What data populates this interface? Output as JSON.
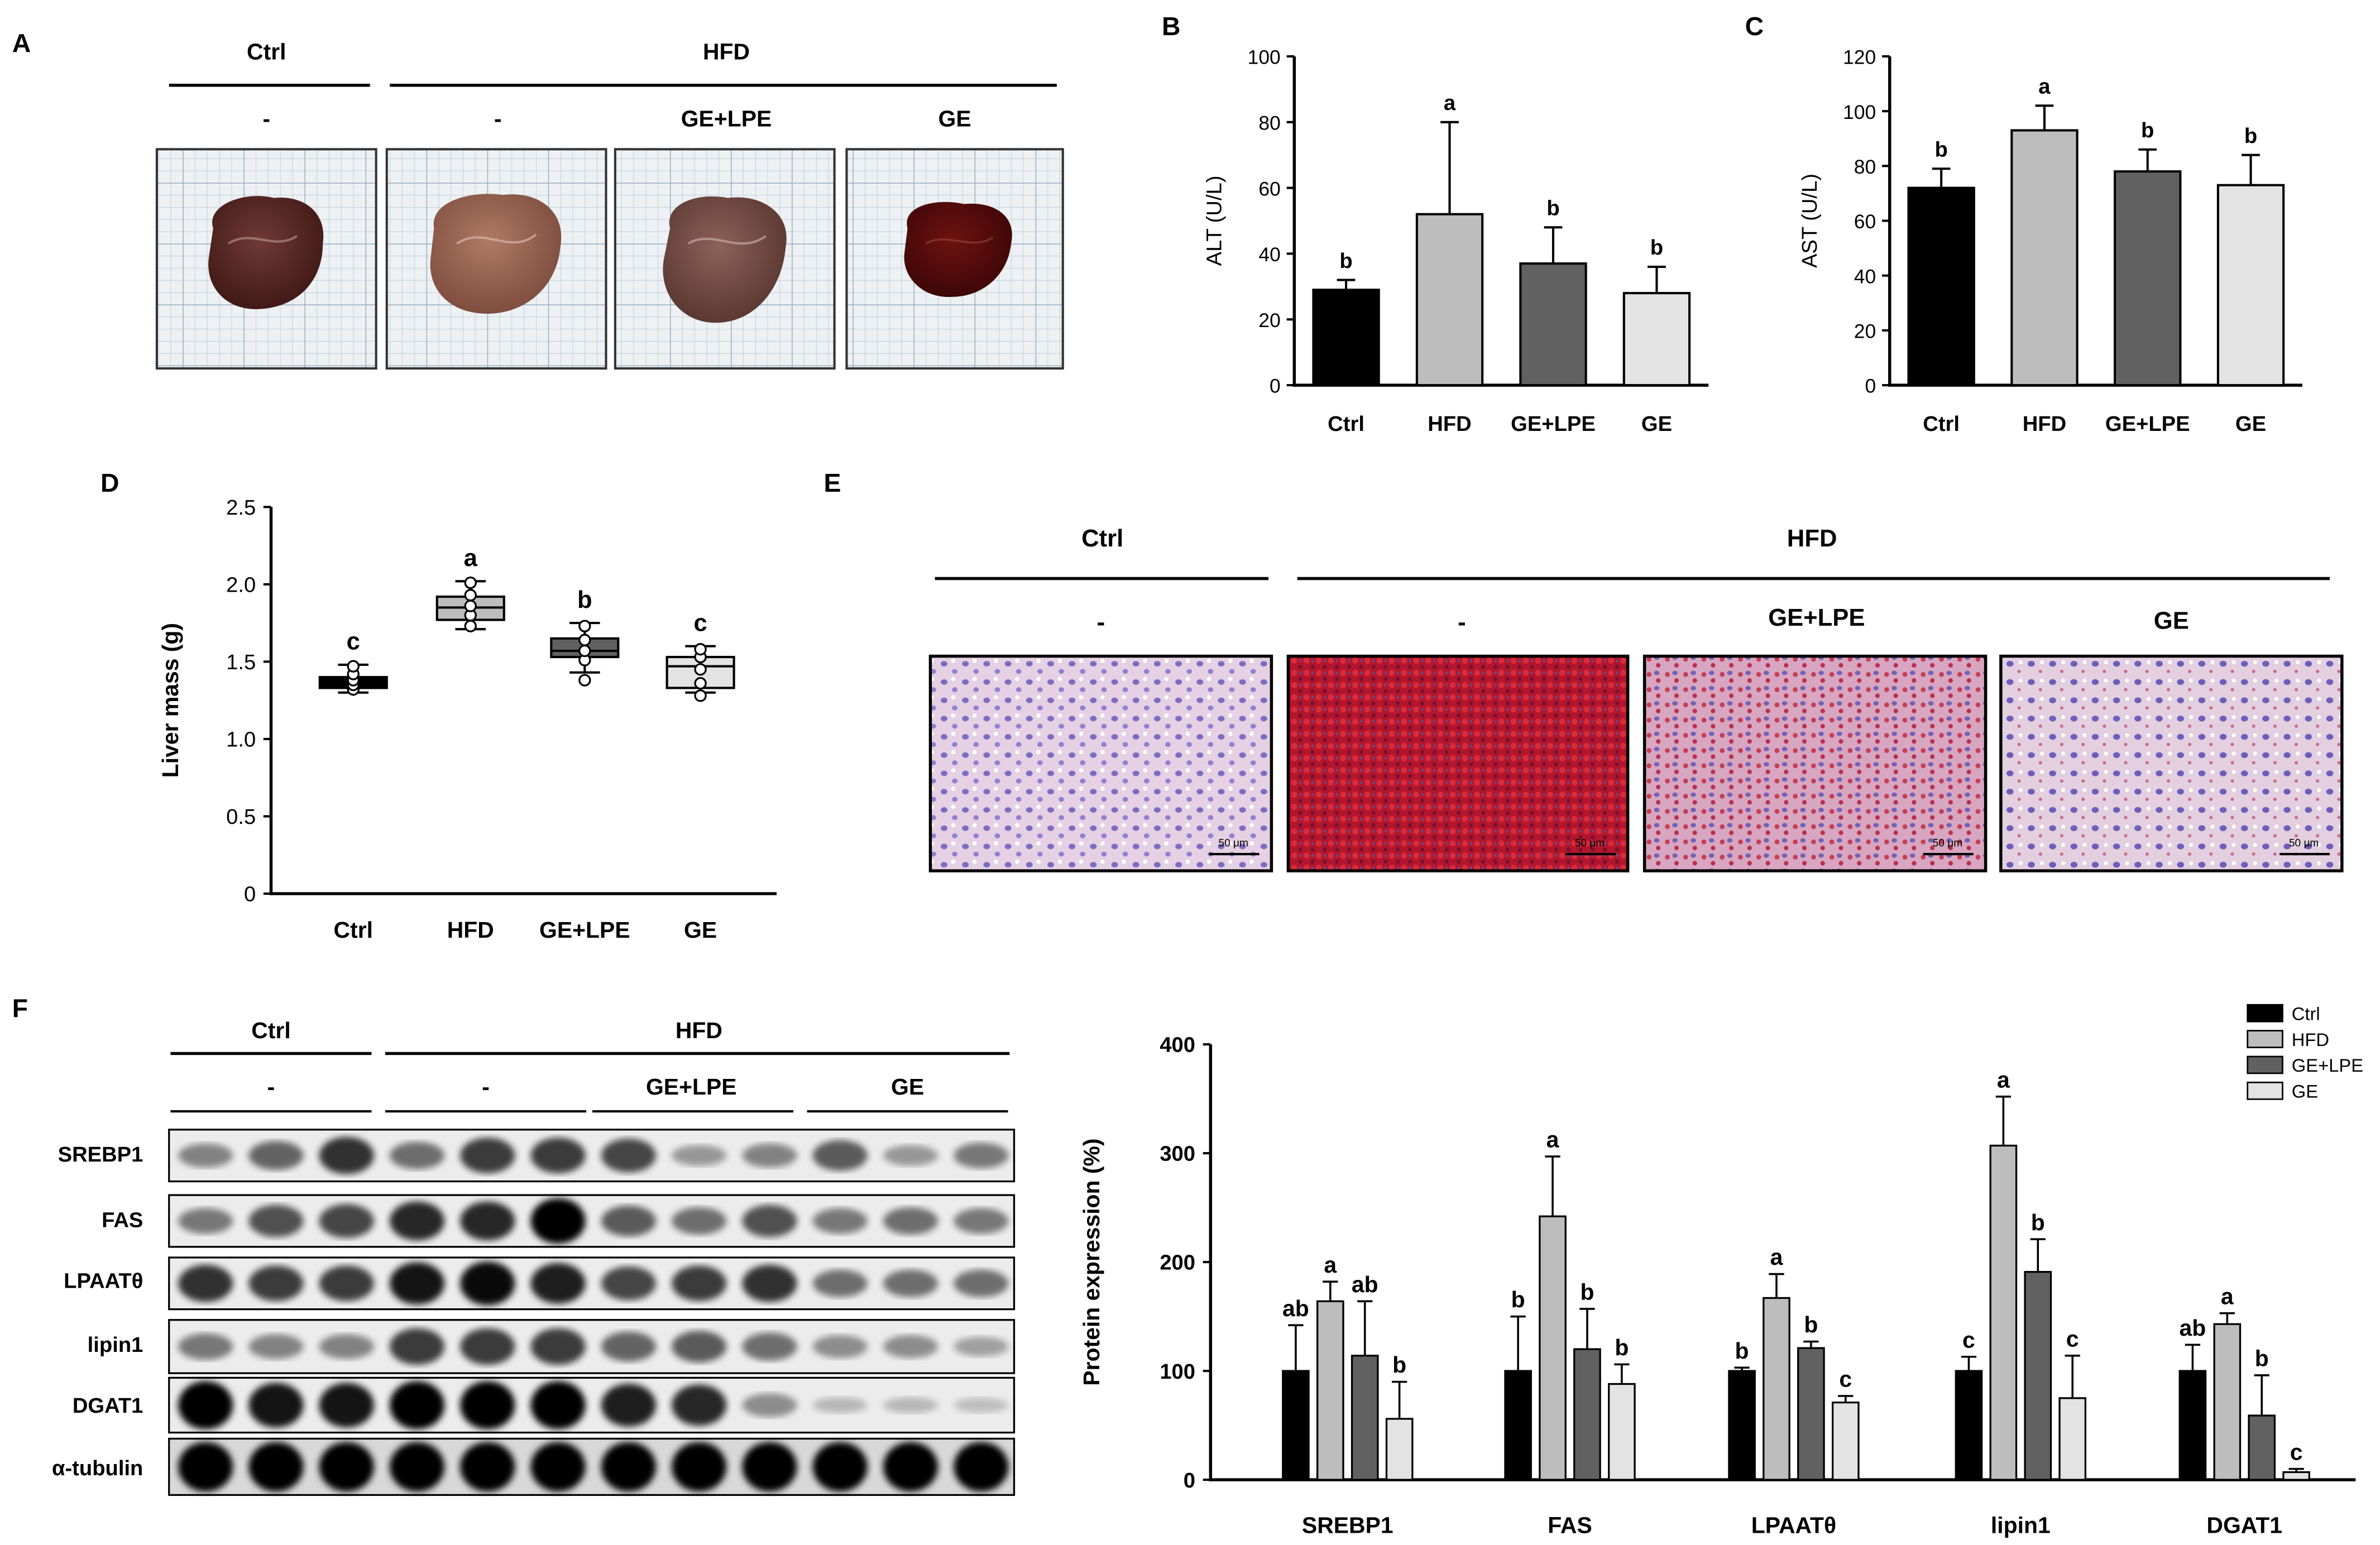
{
  "panels": {
    "A": {
      "label": "A",
      "groups": [
        "Ctrl",
        "HFD"
      ],
      "subgroups": [
        "-",
        "-",
        "GE+LPE",
        "GE"
      ]
    },
    "B": {
      "label": "B"
    },
    "C": {
      "label": "C"
    },
    "D": {
      "label": "D"
    },
    "E": {
      "label": "E",
      "groups": [
        "Ctrl",
        "HFD"
      ],
      "subgroups": [
        "-",
        "-",
        "GE+LPE",
        "GE"
      ],
      "scale_bar": "50 μm"
    },
    "F": {
      "label": "F",
      "groups": [
        "Ctrl",
        "HFD"
      ],
      "subgroups": [
        "-",
        "-",
        "GE+LPE",
        "GE"
      ],
      "proteins": [
        "SREBP1",
        "FAS",
        "LPAATθ",
        "lipin1",
        "DGAT1",
        "α-tubulin"
      ]
    }
  },
  "colors": {
    "ctrl": "#000000",
    "hfd": "#bdbdbd",
    "gelpe": "#616161",
    "ge": "#e3e3e3"
  },
  "chart_data": [
    {
      "id": "B",
      "type": "bar",
      "categories": [
        "Ctrl",
        "HFD",
        "GE+LPE",
        "GE"
      ],
      "values": [
        29,
        52,
        37,
        28
      ],
      "errors": [
        3,
        28,
        11,
        8
      ],
      "letters": [
        "b",
        "a",
        "b",
        "b"
      ],
      "title": "",
      "xlabel": "",
      "ylabel": "ALT (U/L)",
      "ylim": [
        0,
        100
      ],
      "yticks": [
        0,
        20,
        40,
        60,
        80,
        100
      ]
    },
    {
      "id": "C",
      "type": "bar",
      "categories": [
        "Ctrl",
        "HFD",
        "GE+LPE",
        "GE"
      ],
      "values": [
        72,
        93,
        78,
        73
      ],
      "errors": [
        7,
        9,
        8,
        11
      ],
      "letters": [
        "b",
        "a",
        "b",
        "b"
      ],
      "title": "",
      "xlabel": "",
      "ylabel": "AST (U/L)",
      "ylim": [
        0,
        120
      ],
      "yticks": [
        0,
        20,
        40,
        60,
        80,
        100,
        120
      ]
    },
    {
      "id": "D",
      "type": "box",
      "categories": [
        "Ctrl",
        "HFD",
        "GE+LPE",
        "GE"
      ],
      "box": [
        {
          "min": 1.3,
          "q1": 1.33,
          "median": 1.37,
          "q3": 1.4,
          "max": 1.48
        },
        {
          "min": 1.71,
          "q1": 1.77,
          "median": 1.85,
          "q3": 1.92,
          "max": 2.02
        },
        {
          "min": 1.43,
          "q1": 1.53,
          "median": 1.57,
          "q3": 1.65,
          "max": 1.75
        },
        {
          "min": 1.3,
          "q1": 1.33,
          "median": 1.47,
          "q3": 1.53,
          "max": 1.6
        }
      ],
      "points": [
        [
          1.32,
          1.35,
          1.38,
          1.42,
          1.47
        ],
        [
          1.73,
          1.8,
          1.86,
          1.93,
          2.01
        ],
        [
          1.38,
          1.51,
          1.57,
          1.64,
          1.73
        ],
        [
          1.28,
          1.36,
          1.45,
          1.53,
          1.58
        ]
      ],
      "letters": [
        "c",
        "a",
        "b",
        "c"
      ],
      "title": "",
      "xlabel": "",
      "ylabel": "Liver mass (g)",
      "ylim": [
        0,
        2.5
      ],
      "yticks": [
        "0",
        "0.5",
        "1.0",
        "1.5",
        "2.0",
        "2.5"
      ]
    },
    {
      "id": "F",
      "type": "bar",
      "categories": [
        "SREBP1",
        "FAS",
        "LPAATθ",
        "lipin1",
        "DGAT1"
      ],
      "series": [
        {
          "name": "Ctrl",
          "values": [
            100,
            100,
            100,
            100,
            100
          ],
          "errors": [
            42,
            50,
            3,
            13,
            24
          ],
          "letters": [
            "ab",
            "b",
            "b",
            "c",
            "ab"
          ]
        },
        {
          "name": "HFD",
          "values": [
            164,
            242,
            167,
            307,
            143
          ],
          "errors": [
            18,
            55,
            22,
            45,
            10
          ],
          "letters": [
            "a",
            "a",
            "a",
            "a",
            "a"
          ]
        },
        {
          "name": "GE+LPE",
          "values": [
            114,
            120,
            121,
            191,
            59
          ],
          "errors": [
            50,
            37,
            6,
            30,
            37
          ],
          "letters": [
            "ab",
            "b",
            "b",
            "b",
            "b"
          ]
        },
        {
          "name": "GE",
          "values": [
            56,
            88,
            71,
            75,
            7
          ],
          "errors": [
            34,
            18,
            6,
            39,
            3
          ],
          "letters": [
            "b",
            "b",
            "c",
            "c",
            "c"
          ]
        }
      ],
      "title": "",
      "xlabel": "",
      "ylabel": "Protein expression (%)",
      "ylim": [
        0,
        400
      ],
      "yticks": [
        0,
        100,
        200,
        300,
        400
      ],
      "legend": "top-right"
    }
  ]
}
